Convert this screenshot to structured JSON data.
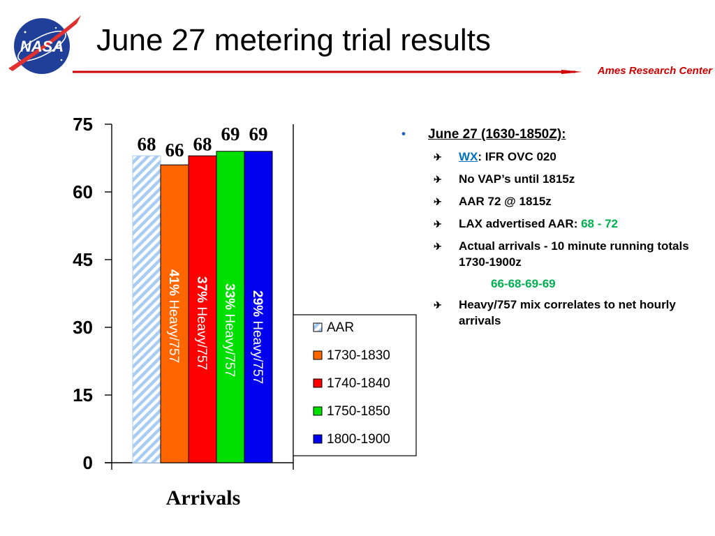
{
  "header": {
    "title": "June 27 metering trial results",
    "org": "Ames Research Center",
    "logo_text": "NASA",
    "accent_color": "#cc0000"
  },
  "chart_data": {
    "type": "bar",
    "xlabel": "Arrivals",
    "ylabel": "",
    "ylim": [
      0,
      75
    ],
    "yticks": [
      0,
      15,
      30,
      45,
      60,
      75
    ],
    "grid": false,
    "legend_position": "right",
    "series": [
      {
        "name": "AAR",
        "value": 68,
        "label": "68",
        "color": "#a9cdf2",
        "pattern": "diagonal-stripes",
        "mix_label": ""
      },
      {
        "name": "1730-1830",
        "value": 66,
        "label": "66",
        "color": "#ff6600",
        "pattern": "solid",
        "mix_label": "41%  Heavy/757"
      },
      {
        "name": "1740-1840",
        "value": 68,
        "label": "68",
        "color": "#ff0000",
        "pattern": "solid",
        "mix_label": "37%  Heavy/757"
      },
      {
        "name": "1750-1850",
        "value": 69,
        "label": "69",
        "color": "#00e000",
        "pattern": "solid",
        "mix_label": "33%  Heavy/757"
      },
      {
        "name": "1800-1900",
        "value": 69,
        "label": "69",
        "color": "#0000ee",
        "pattern": "solid",
        "mix_label": "29%  Heavy/757"
      }
    ]
  },
  "notes": {
    "heading": "June 27 (1630-1850Z):",
    "wx_label": "WX",
    "wx_value": ": IFR OVC 020",
    "items": [
      "No VAP’s until 1815z",
      "AAR 72 @ 1815z"
    ],
    "lax_label": "LAX advertised AAR: ",
    "lax_value": "68 - 72",
    "actual_line": "Actual arrivals - 10 minute running totals 1730-1900z",
    "actual_values": "66-68-69-69",
    "mix_line": "Heavy/757 mix correlates to net hourly arrivals"
  }
}
